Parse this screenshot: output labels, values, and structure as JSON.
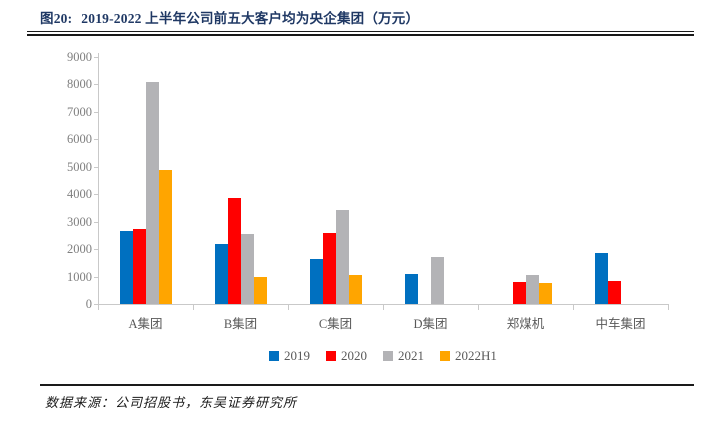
{
  "header": {
    "figure_label": "图20:",
    "title": "2019-2022 上半年公司前五大客户均为央企集团（万元）"
  },
  "chart_data": {
    "type": "bar",
    "title": "2019-2022 上半年公司前五大客户均为央企集团（万元）",
    "unit": "万元",
    "categories": [
      "A集团",
      "B集团",
      "C集团",
      "D集团",
      "郑煤机",
      "中车集团"
    ],
    "series": [
      {
        "name": "2019",
        "color": "#0070C0",
        "values": [
          2650,
          2190,
          1640,
          1100,
          0,
          1870
        ]
      },
      {
        "name": "2020",
        "color": "#FF0000",
        "values": [
          2720,
          3870,
          2600,
          0,
          790,
          850
        ]
      },
      {
        "name": "2021",
        "color": "#B3B3B6",
        "values": [
          8080,
          2560,
          3430,
          1720,
          1040,
          0
        ]
      },
      {
        "name": "2022H1",
        "color": "#FFA500",
        "values": [
          4900,
          1000,
          1060,
          0,
          760,
          0
        ]
      }
    ],
    "xlabel": "",
    "ylabel": "",
    "ylim": [
      0,
      9000
    ],
    "ytick_step": 1000,
    "ytick_labels": [
      "0",
      "1000",
      "2000",
      "3000",
      "4000",
      "5000",
      "6000",
      "7000",
      "8000",
      "9000"
    ],
    "grid": false,
    "legend_position": "bottom"
  },
  "colors": {
    "title_text": "#1F3864",
    "axis_text": "#7f7f7f",
    "category_text": "#595959",
    "axis_line": "#c9c9c9",
    "rule": "#1a1a1a"
  },
  "footer": {
    "source": "数据来源：公司招股书，东吴证券研究所"
  }
}
